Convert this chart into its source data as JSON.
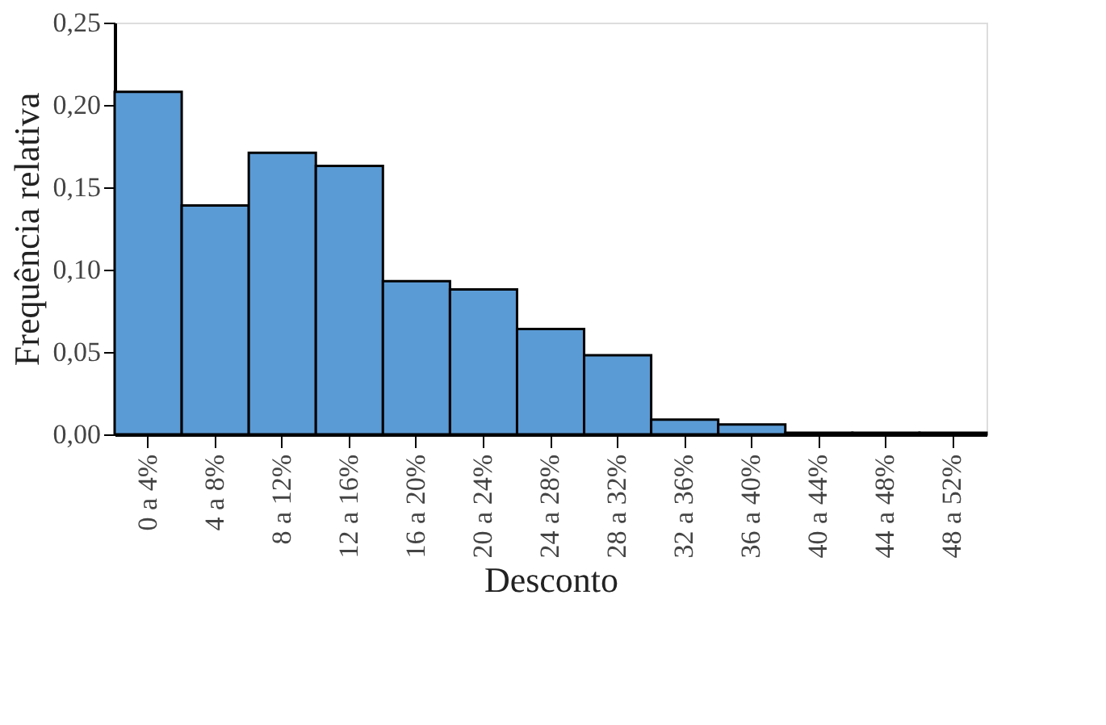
{
  "chart_data": {
    "type": "bar",
    "xlabel": "Desconto",
    "ylabel": "Frequência relativa",
    "categories": [
      "0 a 4%",
      "4 a 8%",
      "8 a 12%",
      "12 a 16%",
      "16 a 20%",
      "20 a 24%",
      "24 a 28%",
      "28 a 32%",
      "32 a 36%",
      "36 a 40%",
      "40 a 44%",
      "44 a 48%",
      "48 a 52%"
    ],
    "values": [
      0.208,
      0.139,
      0.171,
      0.163,
      0.093,
      0.088,
      0.064,
      0.048,
      0.009,
      0.006,
      0.001,
      0.001,
      0.001
    ],
    "color": "#5b9bd5",
    "ylim": [
      0,
      0.25
    ],
    "yticks": [
      {
        "value": 0,
        "label": "0,00"
      },
      {
        "value": 0.05,
        "label": "0,05"
      },
      {
        "value": 0.1,
        "label": "0,10"
      },
      {
        "value": 0.15,
        "label": "0,15"
      },
      {
        "value": 0.2,
        "label": "0,20"
      },
      {
        "value": 0.25,
        "label": "0,25"
      }
    ],
    "grid": false
  }
}
